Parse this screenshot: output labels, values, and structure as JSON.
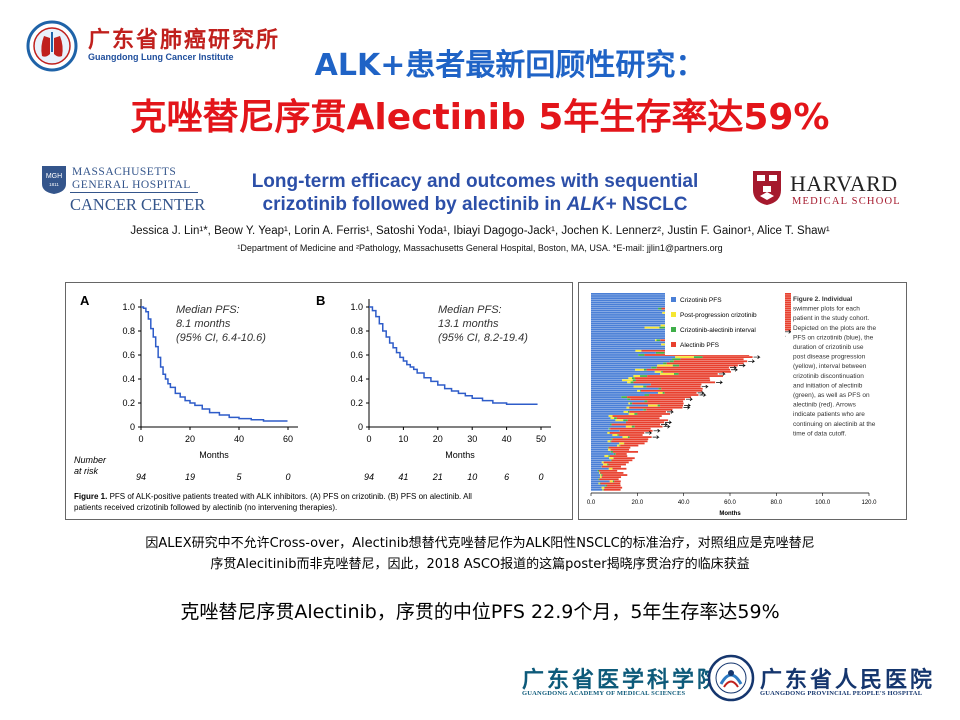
{
  "header": {
    "institute_name": "广东省肺癌研究所",
    "institute_name_en": "Guangdong Lung Cancer Institute",
    "title_line1": "ALK+患者最新回顾性研究：",
    "title_line2": "克唑替尼序贯Alectinib 5年生存率达59%"
  },
  "poster": {
    "mgh_line1": "MASSACHUSETTS",
    "mgh_line2": "GENERAL HOSPITAL",
    "mgh_line3": "CANCER CENTER",
    "mgh_badge": "MGH",
    "mgh_year": "1811",
    "title_line1": "Long-term efficacy and outcomes with sequential",
    "title_line2_a": "crizotinib followed by alectinib in ",
    "title_line2_b": "ALK",
    "title_line2_c": "+ NSCLC",
    "harvard_line1": "HARVARD",
    "harvard_line2": "MEDICAL SCHOOL",
    "authors": "Jessica J. Lin¹*, Beow Y. Yeap¹, Lorin A. Ferris¹, Satoshi Yoda¹, Ibiayi Dagogo-Jack¹, Jochen K. Lennerz², Justin F. Gainor¹, Alice T. Shaw¹",
    "affiliations": "¹Department of Medicine and ²Pathology, Massachusetts General Hospital, Boston, MA, USA. *E-mail: jjlin1@partners.org"
  },
  "figure1": {
    "caption_bold": "Figure 1.",
    "caption_text": " PFS of ALK-positive patients treated with ALK inhibitors. (A) PFS on crizotinib. (B) PFS on alectinib. All",
    "caption_text2": "patients received crizotinib followed by alectinib (no intervening therapies).",
    "number_at_risk_label1": "Number",
    "number_at_risk_label2": "at risk",
    "panels": [
      {
        "letter": "A",
        "median_line1": "Median PFS:",
        "median_line2": "8.1 months",
        "median_line3": "(95% CI, 6.4-10.6)",
        "x_label": "Months",
        "x_ticks": [
          0,
          20,
          40,
          60
        ],
        "y_ticks": [
          "0",
          "0.2",
          "0.4",
          "0.6",
          "0.8",
          "1.0"
        ],
        "x_range": [
          0,
          60
        ],
        "at_risk": [
          "94",
          "19",
          "5",
          "0"
        ],
        "km_curve": [
          [
            0,
            1.0
          ],
          [
            1,
            0.99
          ],
          [
            2,
            0.96
          ],
          [
            3,
            0.9
          ],
          [
            4,
            0.82
          ],
          [
            5,
            0.75
          ],
          [
            6,
            0.67
          ],
          [
            7,
            0.58
          ],
          [
            8,
            0.5
          ],
          [
            9,
            0.44
          ],
          [
            10,
            0.4
          ],
          [
            11,
            0.36
          ],
          [
            12,
            0.33
          ],
          [
            14,
            0.28
          ],
          [
            16,
            0.25
          ],
          [
            18,
            0.22
          ],
          [
            20,
            0.2
          ],
          [
            22,
            0.18
          ],
          [
            25,
            0.15
          ],
          [
            28,
            0.12
          ],
          [
            32,
            0.1
          ],
          [
            36,
            0.08
          ],
          [
            40,
            0.07
          ],
          [
            45,
            0.06
          ],
          [
            50,
            0.05
          ],
          [
            55,
            0.05
          ]
        ]
      },
      {
        "letter": "B",
        "median_line1": "Median PFS:",
        "median_line2": "13.1 months",
        "median_line3": "(95% CI, 8.2-19.4)",
        "x_label": "Months",
        "x_ticks": [
          0,
          10,
          20,
          30,
          40,
          50
        ],
        "y_ticks": [
          "0",
          "0.2",
          "0.4",
          "0.6",
          "0.8",
          "1.0"
        ],
        "x_range": [
          0,
          50
        ],
        "at_risk": [
          "94",
          "41",
          "21",
          "10",
          "6",
          "0"
        ],
        "km_curve": [
          [
            0,
            1.0
          ],
          [
            1,
            0.97
          ],
          [
            2,
            0.92
          ],
          [
            3,
            0.86
          ],
          [
            4,
            0.8
          ],
          [
            5,
            0.75
          ],
          [
            6,
            0.7
          ],
          [
            7,
            0.66
          ],
          [
            8,
            0.62
          ],
          [
            9,
            0.58
          ],
          [
            10,
            0.55
          ],
          [
            11,
            0.52
          ],
          [
            12,
            0.5
          ],
          [
            13,
            0.48
          ],
          [
            14,
            0.45
          ],
          [
            16,
            0.41
          ],
          [
            18,
            0.38
          ],
          [
            20,
            0.35
          ],
          [
            22,
            0.32
          ],
          [
            24,
            0.3
          ],
          [
            26,
            0.28
          ],
          [
            28,
            0.26
          ],
          [
            30,
            0.24
          ],
          [
            33,
            0.22
          ],
          [
            36,
            0.2
          ],
          [
            40,
            0.19
          ],
          [
            45,
            0.19
          ]
        ]
      }
    ]
  },
  "figure2": {
    "legend": [
      {
        "label": "Crizotinib PFS",
        "color": "#4a7fd6"
      },
      {
        "label": "Post-progression crizotinib",
        "color": "#f5e632"
      },
      {
        "label": "Crizotinib-alectinib interval",
        "color": "#3fae49"
      },
      {
        "label": "Alectinib PFS",
        "color": "#e8402e"
      }
    ],
    "caption_lines": [
      "Figure 2. Individual",
      "swimmer plots for each",
      "patient in the study cohort.",
      "Depicted on the plots are the",
      "PFS on crizotinib (blue), the",
      "duration of crizotinib use",
      "post disease progression",
      "(yellow), interval between",
      "crizotinib discontinuation",
      "and initiation of alectinib",
      "(green), as well as PFS on",
      "alectinib (red). Arrows",
      "indicate patients who are",
      "continuing on alectinib at the",
      "time of data cutoff."
    ],
    "x_ticks": [
      "0.0",
      "20.0",
      "40.0",
      "60.0",
      "80.0",
      "100.0",
      "120.0"
    ],
    "x_label": "Months",
    "x_range": [
      0,
      120
    ]
  },
  "captions": {
    "line1": "因ALEX研究中不允许Cross-over，Alectinib想替代克唑替尼作为ALK阳性NSCLC的标准治疗，对照组应是克唑替尼",
    "line2": "序贯Alecitinib而非克唑替尼，因此，2018  ASCO报道的这篇poster揭晓序贯治疗的临床获益",
    "summary": "克唑替尼序贯Alectinib，序贯的中位PFS 22.9个月，5年生存率达59%"
  },
  "footer": {
    "left_cn": "广东省医学科学院",
    "left_en": "GUANGDONG ACADEMY OF MEDICAL SCIENCES",
    "right_cn": "广东省人民医院",
    "right_en": "GUANGDONG PROVINCIAL PEOPLE'S HOSPITAL"
  },
  "colors": {
    "title_blue": "#1f63c6",
    "title_red": "#e3151a",
    "poster_title_blue": "#2c4fa8",
    "km_curve": "#2e5cc9"
  }
}
